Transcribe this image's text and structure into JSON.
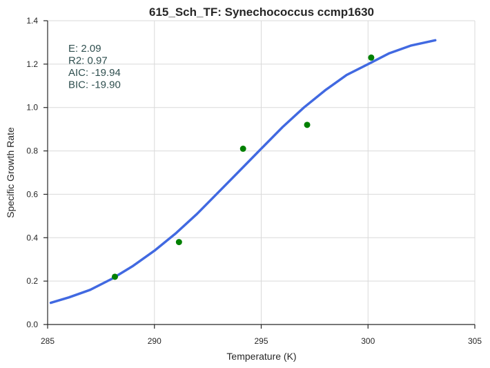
{
  "chart_data": {
    "type": "scatter",
    "title": "615_Sch_TF: Synechococcus ccmp1630",
    "xlabel": "Temperature (K)",
    "ylabel": "Specific Growth Rate",
    "xlim": [
      285,
      305
    ],
    "ylim": [
      0.0,
      1.4
    ],
    "xticks": [
      285,
      290,
      295,
      300,
      305
    ],
    "xtick_labels": [
      "285",
      "290",
      "295",
      "300",
      "305"
    ],
    "yticks": [
      0.0,
      0.2,
      0.4,
      0.6,
      0.8,
      1.0,
      1.2,
      1.4
    ],
    "ytick_labels": [
      "0.0",
      "0.2",
      "0.4",
      "0.6",
      "0.8",
      "1.0",
      "1.2",
      "1.4"
    ],
    "grid": true,
    "points": {
      "color": "#008000",
      "x": [
        288.15,
        291.15,
        294.15,
        297.15,
        300.15
      ],
      "y": [
        0.22,
        0.38,
        0.81,
        0.92,
        1.23
      ]
    },
    "fit_curve": {
      "color": "#4169e1",
      "x": [
        285.15,
        286,
        287,
        288,
        289,
        290,
        291,
        292,
        293,
        294,
        295,
        296,
        297,
        298,
        299,
        300,
        301,
        302,
        303.15
      ],
      "y": [
        0.1,
        0.125,
        0.16,
        0.21,
        0.27,
        0.34,
        0.42,
        0.51,
        0.61,
        0.71,
        0.81,
        0.91,
        1.0,
        1.08,
        1.15,
        1.2,
        1.25,
        1.285,
        1.31
      ]
    },
    "annotations": [
      "E:  2.09",
      "R2:  0.97",
      "AIC: -19.94",
      "BIC: -19.90"
    ]
  }
}
